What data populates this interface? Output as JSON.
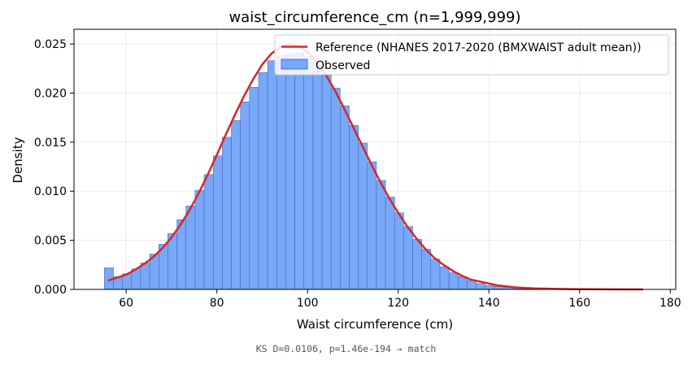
{
  "chart_data": {
    "type": "bar",
    "title": "waist_circumference_cm  (n=1,999,999)",
    "xlabel": "Waist circumference (cm)",
    "ylabel": "Density",
    "xlim": [
      48.5,
      181.2
    ],
    "ylim": [
      0,
      0.0265
    ],
    "xticks": [
      "60",
      "80",
      "100",
      "120",
      "140",
      "160",
      "180"
    ],
    "yticks": [
      "0.000",
      "0.005",
      "0.010",
      "0.015",
      "0.020",
      "0.025"
    ],
    "grid": true,
    "legend_position": "top-right",
    "legend": [
      {
        "label": "Reference (NHANES 2017-2020 (BMXWAIST adult mean))",
        "kind": "line"
      },
      {
        "label": "Observed",
        "kind": "patch"
      }
    ],
    "histogram": {
      "name": "Observed",
      "bin_start": 55.2,
      "bin_width": 2.0,
      "values": [
        0.0022,
        0.0013,
        0.0016,
        0.0021,
        0.0027,
        0.0036,
        0.0046,
        0.0057,
        0.0071,
        0.0085,
        0.0101,
        0.0117,
        0.0136,
        0.0155,
        0.0172,
        0.0191,
        0.0206,
        0.0221,
        0.0233,
        0.0238,
        0.024,
        0.0241,
        0.0237,
        0.0231,
        0.0218,
        0.0205,
        0.0187,
        0.0167,
        0.0149,
        0.013,
        0.0111,
        0.0094,
        0.0078,
        0.0064,
        0.0051,
        0.0041,
        0.0031,
        0.0023,
        0.0017,
        0.0013,
        0.0009,
        0.0006,
        0.0004,
        0.0003,
        0.0002,
        0.00015,
        0.0001,
        7e-05,
        5e-05,
        3e-05,
        2e-05,
        1e-05,
        1e-05,
        1e-05
      ]
    },
    "reference_curve": {
      "name": "Reference (NHANES 2017-2020 (BMXWAIST adult mean))",
      "x": [
        56,
        58,
        60,
        62,
        64,
        66,
        68,
        70,
        72,
        74,
        76,
        78,
        80,
        82,
        84,
        86,
        88,
        90,
        92,
        94,
        96,
        98,
        100,
        102,
        104,
        106,
        108,
        110,
        112,
        114,
        116,
        118,
        120,
        122,
        124,
        126,
        128,
        130,
        132,
        134,
        136,
        138,
        140,
        142,
        144,
        146,
        148,
        150,
        155,
        160,
        165,
        170,
        174
      ],
      "y": [
        0.0009,
        0.0012,
        0.0015,
        0.002,
        0.0026,
        0.0033,
        0.0042,
        0.0053,
        0.0066,
        0.0081,
        0.0098,
        0.0117,
        0.0137,
        0.0158,
        0.0178,
        0.0197,
        0.0214,
        0.0229,
        0.024,
        0.0247,
        0.025,
        0.0248,
        0.0242,
        0.0232,
        0.0219,
        0.0203,
        0.0185,
        0.0166,
        0.0147,
        0.0128,
        0.011,
        0.0093,
        0.0078,
        0.0064,
        0.0052,
        0.0041,
        0.0032,
        0.0025,
        0.0019,
        0.0014,
        0.001,
        0.0008,
        0.0006,
        0.0004,
        0.0003,
        0.0002,
        0.00015,
        0.0001,
        5e-05,
        2e-05,
        1e-05,
        0.0,
        0.0
      ]
    },
    "colors": {
      "bar_fill": "#78a8f7",
      "bar_edge": "#3a5fb8",
      "curve": "#d62728",
      "grid": "#e6e6e6"
    }
  },
  "footer": {
    "text": "KS D=0.0106, p=1.46e-194 → match"
  }
}
